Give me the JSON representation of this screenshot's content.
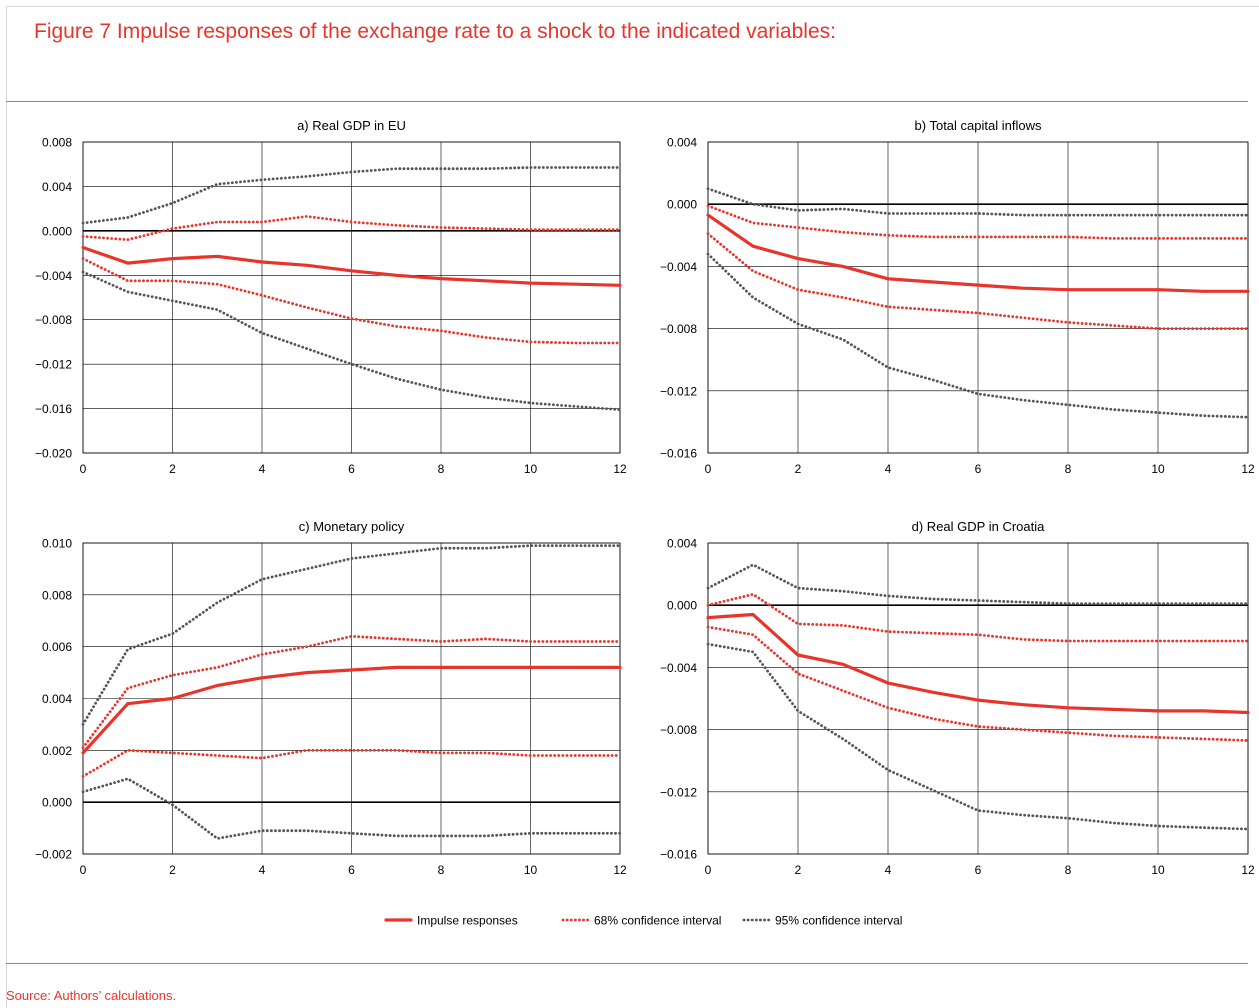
{
  "figure": {
    "title": "Figure 7 Impulse responses of the exchange rate to a shock to the indicated variables:",
    "source": "Source: Authors’ calculations.",
    "legend": [
      {
        "label": "Impulse responses",
        "style": "solid",
        "color": "#e8352b"
      },
      {
        "label": "68% confidence interval",
        "style": "dotted",
        "color": "#e8352b"
      },
      {
        "label": "95% confidence interval",
        "style": "dotted",
        "color": "#555555"
      }
    ],
    "colors": {
      "accent": "#e8352b",
      "ci95": "#555555",
      "grid": "#000000"
    }
  },
  "chart_data": [
    {
      "type": "line",
      "title": "a) Real GDP in EU",
      "x": [
        0,
        1,
        2,
        3,
        4,
        5,
        6,
        7,
        8,
        9,
        10,
        11,
        12
      ],
      "xticks": [
        "0",
        "2",
        "4",
        "6",
        "8",
        "10",
        "12"
      ],
      "ylim": [
        -0.02,
        0.008
      ],
      "yticks": [
        "0.008",
        "0.004",
        "0.000",
        "−0.004",
        "−0.008",
        "−0.012",
        "−0.016",
        "−0.020"
      ],
      "grid": true,
      "series": [
        {
          "name": "Impulse responses",
          "style": "solid",
          "values": [
            -0.0015,
            -0.0029,
            -0.0025,
            -0.0023,
            -0.0028,
            -0.0031,
            -0.0036,
            -0.004,
            -0.0043,
            -0.0045,
            -0.0047,
            -0.0048,
            -0.0049
          ]
        },
        {
          "name": "68% confidence interval",
          "style": "dotted68",
          "values": [
            -0.0005,
            -0.0008,
            0.0002,
            0.0008,
            0.0008,
            0.0013,
            0.0008,
            0.0005,
            0.0003,
            0.0002,
            0.0001,
            0.0001,
            0.0001
          ]
        },
        {
          "name": "68% confidence interval",
          "style": "dotted68",
          "values": [
            -0.0025,
            -0.0045,
            -0.0045,
            -0.0048,
            -0.0058,
            -0.0069,
            -0.0079,
            -0.0086,
            -0.009,
            -0.0096,
            -0.01,
            -0.0101,
            -0.0101
          ]
        },
        {
          "name": "95% confidence interval",
          "style": "dotted95",
          "values": [
            0.0007,
            0.0012,
            0.0025,
            0.0042,
            0.0046,
            0.0049,
            0.0053,
            0.0056,
            0.0056,
            0.0056,
            0.0057,
            0.0057,
            0.0057
          ]
        },
        {
          "name": "95% confidence interval",
          "style": "dotted95",
          "values": [
            -0.0037,
            -0.0055,
            -0.0063,
            -0.0071,
            -0.0092,
            -0.0106,
            -0.012,
            -0.0133,
            -0.0143,
            -0.015,
            -0.0155,
            -0.0158,
            -0.0161
          ]
        }
      ]
    },
    {
      "type": "line",
      "title": "b) Total capital inflows",
      "x": [
        0,
        1,
        2,
        3,
        4,
        5,
        6,
        7,
        8,
        9,
        10,
        11,
        12
      ],
      "xticks": [
        "0",
        "2",
        "4",
        "6",
        "8",
        "10",
        "12"
      ],
      "ylim": [
        -0.016,
        0.004
      ],
      "yticks": [
        "0.004",
        "0.000",
        "−0.004",
        "−0.008",
        "−0.012",
        "−0.016"
      ],
      "grid": true,
      "series": [
        {
          "name": "Impulse responses",
          "style": "solid",
          "values": [
            -0.0007,
            -0.0027,
            -0.0035,
            -0.004,
            -0.0048,
            -0.005,
            -0.0052,
            -0.0054,
            -0.0055,
            -0.0055,
            -0.0055,
            -0.0056,
            -0.0056
          ]
        },
        {
          "name": "68% confidence interval",
          "style": "dotted68",
          "values": [
            -0.0001,
            -0.0012,
            -0.0015,
            -0.0018,
            -0.002,
            -0.0021,
            -0.0021,
            -0.0021,
            -0.0021,
            -0.0022,
            -0.0022,
            -0.0022,
            -0.0022
          ]
        },
        {
          "name": "68% confidence interval",
          "style": "dotted68",
          "values": [
            -0.0019,
            -0.0043,
            -0.0055,
            -0.006,
            -0.0066,
            -0.0068,
            -0.007,
            -0.0073,
            -0.0076,
            -0.0078,
            -0.008,
            -0.008,
            -0.008
          ]
        },
        {
          "name": "95% confidence interval",
          "style": "dotted95",
          "values": [
            0.001,
            0.0,
            -0.0004,
            -0.0003,
            -0.0006,
            -0.0006,
            -0.0006,
            -0.0007,
            -0.0007,
            -0.0007,
            -0.0007,
            -0.0007,
            -0.0007
          ]
        },
        {
          "name": "95% confidence interval",
          "style": "dotted95",
          "values": [
            -0.0032,
            -0.006,
            -0.0077,
            -0.0087,
            -0.0105,
            -0.0113,
            -0.0122,
            -0.0126,
            -0.0129,
            -0.0132,
            -0.0134,
            -0.0136,
            -0.0137
          ]
        }
      ]
    },
    {
      "type": "line",
      "title": "c) Monetary policy",
      "x": [
        0,
        1,
        2,
        3,
        4,
        5,
        6,
        7,
        8,
        9,
        10,
        11,
        12
      ],
      "xticks": [
        "0",
        "2",
        "4",
        "6",
        "8",
        "10",
        "12"
      ],
      "ylim": [
        -0.002,
        0.01
      ],
      "yticks": [
        "0.010",
        "0.008",
        "0.006",
        "0.004",
        "0.002",
        "0.000",
        "−0.002"
      ],
      "grid": true,
      "series": [
        {
          "name": "Impulse responses",
          "style": "solid",
          "values": [
            0.0019,
            0.0038,
            0.004,
            0.0045,
            0.0048,
            0.005,
            0.0051,
            0.0052,
            0.0052,
            0.0052,
            0.0052,
            0.0052,
            0.0052
          ]
        },
        {
          "name": "68% confidence interval",
          "style": "dotted68",
          "values": [
            0.0021,
            0.0044,
            0.0049,
            0.0052,
            0.0057,
            0.006,
            0.0064,
            0.0063,
            0.0062,
            0.0063,
            0.0062,
            0.0062,
            0.0062
          ]
        },
        {
          "name": "68% confidence interval",
          "style": "dotted68",
          "values": [
            0.001,
            0.002,
            0.0019,
            0.0018,
            0.0017,
            0.002,
            0.002,
            0.002,
            0.0019,
            0.0019,
            0.0018,
            0.0018,
            0.0018
          ]
        },
        {
          "name": "95% confidence interval",
          "style": "dotted95",
          "values": [
            0.003,
            0.0059,
            0.0065,
            0.0077,
            0.0086,
            0.009,
            0.0094,
            0.0096,
            0.0098,
            0.0098,
            0.0099,
            0.0099,
            0.0099
          ]
        },
        {
          "name": "95% confidence interval",
          "style": "dotted95",
          "values": [
            0.0004,
            0.0009,
            -0.0001,
            -0.0014,
            -0.0011,
            -0.0011,
            -0.0012,
            -0.0013,
            -0.0013,
            -0.0013,
            -0.0012,
            -0.0012,
            -0.0012
          ]
        }
      ]
    },
    {
      "type": "line",
      "title": "d) Real GDP in Croatia",
      "x": [
        0,
        1,
        2,
        3,
        4,
        5,
        6,
        7,
        8,
        9,
        10,
        11,
        12
      ],
      "xticks": [
        "0",
        "2",
        "4",
        "6",
        "8",
        "10",
        "12"
      ],
      "ylim": [
        -0.016,
        0.004
      ],
      "yticks": [
        "0.004",
        "0.000",
        "−0.004",
        "−0.008",
        "−0.012",
        "−0.016"
      ],
      "grid": true,
      "series": [
        {
          "name": "Impulse responses",
          "style": "solid",
          "values": [
            -0.0008,
            -0.0006,
            -0.0032,
            -0.0038,
            -0.005,
            -0.0056,
            -0.0061,
            -0.0064,
            -0.0066,
            -0.0067,
            -0.0068,
            -0.0068,
            -0.0069
          ]
        },
        {
          "name": "68% confidence interval",
          "style": "dotted68",
          "values": [
            0.0,
            0.0007,
            -0.0012,
            -0.0013,
            -0.0017,
            -0.0018,
            -0.0019,
            -0.0022,
            -0.0023,
            -0.0023,
            -0.0023,
            -0.0023,
            -0.0023
          ]
        },
        {
          "name": "68% confidence interval",
          "style": "dotted68",
          "values": [
            -0.0014,
            -0.0019,
            -0.0044,
            -0.0055,
            -0.0066,
            -0.0073,
            -0.0078,
            -0.008,
            -0.0082,
            -0.0084,
            -0.0085,
            -0.0086,
            -0.0087
          ]
        },
        {
          "name": "95% confidence interval",
          "style": "dotted95",
          "values": [
            0.0011,
            0.0026,
            0.0011,
            0.0009,
            0.0006,
            0.0004,
            0.0003,
            0.0002,
            0.0001,
            0.0001,
            0.0001,
            0.0001,
            0.0001
          ]
        },
        {
          "name": "95% confidence interval",
          "style": "dotted95",
          "values": [
            -0.0025,
            -0.003,
            -0.0068,
            -0.0086,
            -0.0106,
            -0.0119,
            -0.0132,
            -0.0135,
            -0.0137,
            -0.014,
            -0.0142,
            -0.0143,
            -0.0144
          ]
        }
      ]
    }
  ]
}
